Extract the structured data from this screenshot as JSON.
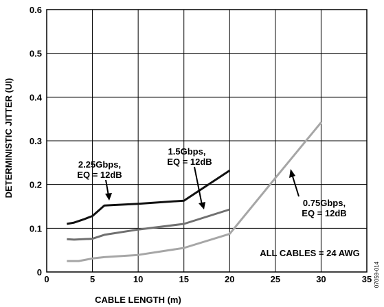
{
  "chart_data": {
    "type": "line",
    "title": "",
    "xlabel": "CABLE LENGTH (m)",
    "ylabel": "DETERMINISTIC JITTER (UI)",
    "xlim": [
      0,
      35
    ],
    "ylim": [
      0,
      0.6
    ],
    "xticks": [
      0,
      5,
      10,
      15,
      20,
      25,
      30,
      35
    ],
    "yticks": [
      0,
      0.1,
      0.2,
      0.3,
      0.4,
      0.5,
      0.6
    ],
    "xtick_labels": [
      "0",
      "5",
      "10",
      "15",
      "20",
      "25",
      "30",
      "35"
    ],
    "ytick_labels": [
      "0",
      "0.1",
      "0.2",
      "0.3",
      "0.4",
      "0.5",
      "0.6"
    ],
    "grid": true,
    "series": [
      {
        "label_lines": [
          "2.25Gbps,",
          "EQ = 12dB"
        ],
        "color": "#111111",
        "points": [
          [
            2.2,
            0.11
          ],
          [
            3,
            0.113
          ],
          [
            4,
            0.12
          ],
          [
            5,
            0.128
          ],
          [
            6.3,
            0.152
          ],
          [
            10,
            0.156
          ],
          [
            15,
            0.163
          ],
          [
            20,
            0.232
          ]
        ]
      },
      {
        "label_lines": [
          "1.5Gbps,",
          "EQ = 12dB"
        ],
        "color": "#707070",
        "points": [
          [
            2.2,
            0.075
          ],
          [
            3,
            0.074
          ],
          [
            5,
            0.076
          ],
          [
            6.3,
            0.085
          ],
          [
            10,
            0.097
          ],
          [
            15,
            0.11
          ],
          [
            20,
            0.143
          ]
        ]
      },
      {
        "label_lines": [
          "0.75Gbps,",
          "EQ = 12dB"
        ],
        "color": "#a6a6a6",
        "points": [
          [
            2.2,
            0.025
          ],
          [
            3.5,
            0.025
          ],
          [
            5,
            0.031
          ],
          [
            6.3,
            0.034
          ],
          [
            10,
            0.039
          ],
          [
            15,
            0.055
          ],
          [
            20,
            0.087
          ],
          [
            25,
            0.215
          ],
          [
            30,
            0.342
          ]
        ]
      }
    ],
    "annotations": [
      {
        "text": "ALL CABLES = 24 AWG"
      },
      {
        "text": "07059-014"
      }
    ]
  }
}
